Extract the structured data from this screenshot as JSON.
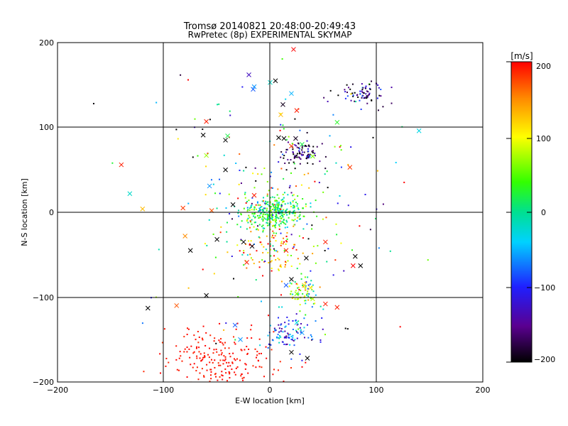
{
  "chart_data": {
    "type": "scatter",
    "title": "Tromsø 20140821 20:48:00-20:49:43",
    "subtitle": "RwPretec (8p) EXPERIMENTAL SKYMAP",
    "xlabel": "E-W location [km]",
    "ylabel": "N-S location [km]",
    "xlim": [
      -200,
      200
    ],
    "ylim": [
      -200,
      200
    ],
    "xticks": [
      "−200",
      "−100",
      "0",
      "100",
      "200"
    ],
    "yticks": [
      "−200",
      "−100",
      "0",
      "100",
      "200"
    ],
    "grid": true,
    "colorbar": {
      "label": "[m/s]",
      "range": [
        -200,
        200
      ],
      "ticks": [
        "200",
        "100",
        "0",
        "−100",
        "−200"
      ]
    },
    "clusters": [
      {
        "cx": 5,
        "cy": 0,
        "sx": 14,
        "sy": 10,
        "n": 320,
        "vmean": 20,
        "vsd": 35
      },
      {
        "cx": 0,
        "cy": -40,
        "sx": 18,
        "sy": 18,
        "n": 110,
        "vmean": 130,
        "vsd": 60
      },
      {
        "cx": -45,
        "cy": -175,
        "sx": 28,
        "sy": 20,
        "n": 230,
        "vmean": 195,
        "vsd": 6
      },
      {
        "cx": 15,
        "cy": -145,
        "sx": 13,
        "sy": 10,
        "n": 95,
        "vmean": -95,
        "vsd": 45
      },
      {
        "cx": 30,
        "cy": -95,
        "sx": 8,
        "sy": 10,
        "n": 70,
        "vmean": 60,
        "vsd": 70
      },
      {
        "cx": 30,
        "cy": 70,
        "sx": 9,
        "sy": 8,
        "n": 85,
        "vmean": -165,
        "vsd": 40
      },
      {
        "cx": 85,
        "cy": 140,
        "sx": 12,
        "sy": 8,
        "n": 75,
        "vmean": -150,
        "vsd": 60
      },
      {
        "cx": 10,
        "cy": 20,
        "sx": 40,
        "sy": 55,
        "n": 160,
        "vmean": 0,
        "vsd": 130
      },
      {
        "cx": 10,
        "cy": 0,
        "sx": 80,
        "sy": 100,
        "n": 70,
        "vmean": 0,
        "vsd": 150
      }
    ],
    "crosses": [
      {
        "x": 22,
        "y": 192,
        "v": 200
      },
      {
        "x": -20,
        "y": 162,
        "v": -130
      },
      {
        "x": -16,
        "y": 145,
        "v": -80
      },
      {
        "x": -15,
        "y": 148,
        "v": -60
      },
      {
        "x": 0,
        "y": 153,
        "v": -20
      },
      {
        "x": 5,
        "y": 155,
        "v": -200
      },
      {
        "x": 20,
        "y": 140,
        "v": -50
      },
      {
        "x": 12,
        "y": 127,
        "v": -190
      },
      {
        "x": 10,
        "y": 115,
        "v": 130
      },
      {
        "x": 25,
        "y": 120,
        "v": 190
      },
      {
        "x": -60,
        "y": 107,
        "v": 190
      },
      {
        "x": -63,
        "y": 91,
        "v": -200
      },
      {
        "x": -40,
        "y": 90,
        "v": 20
      },
      {
        "x": -42,
        "y": 85,
        "v": -200
      },
      {
        "x": 8,
        "y": 88,
        "v": -200
      },
      {
        "x": 13,
        "y": 87,
        "v": -200
      },
      {
        "x": 24,
        "y": 87,
        "v": -190
      },
      {
        "x": 20,
        "y": 78,
        "v": 180
      },
      {
        "x": 63,
        "y": 106,
        "v": 30
      },
      {
        "x": 140,
        "y": 96,
        "v": -30
      },
      {
        "x": -140,
        "y": 56,
        "v": 190
      },
      {
        "x": -42,
        "y": 50,
        "v": -200
      },
      {
        "x": -60,
        "y": 67,
        "v": 70
      },
      {
        "x": -57,
        "y": 31,
        "v": -60
      },
      {
        "x": -132,
        "y": 22,
        "v": -20
      },
      {
        "x": -120,
        "y": 4,
        "v": 130
      },
      {
        "x": -82,
        "y": 5,
        "v": 180
      },
      {
        "x": -35,
        "y": 9,
        "v": -200
      },
      {
        "x": -55,
        "y": 2,
        "v": 170
      },
      {
        "x": -15,
        "y": 20,
        "v": 190
      },
      {
        "x": 40,
        "y": 66,
        "v": 60
      },
      {
        "x": 30,
        "y": 80,
        "v": 20
      },
      {
        "x": 75,
        "y": 53,
        "v": 180
      },
      {
        "x": 78,
        "y": -63,
        "v": 200
      },
      {
        "x": 85,
        "y": -63,
        "v": -200
      },
      {
        "x": 52,
        "y": -35,
        "v": 190
      },
      {
        "x": 34,
        "y": -54,
        "v": -200
      },
      {
        "x": -80,
        "y": -28,
        "v": 150
      },
      {
        "x": -75,
        "y": -45,
        "v": -200
      },
      {
        "x": -50,
        "y": -32,
        "v": -200
      },
      {
        "x": -25,
        "y": -35,
        "v": -200
      },
      {
        "x": -22,
        "y": -59,
        "v": 190
      },
      {
        "x": -17,
        "y": -40,
        "v": -200
      },
      {
        "x": 15,
        "y": -45,
        "v": 190
      },
      {
        "x": 20,
        "y": -79,
        "v": -200
      },
      {
        "x": 15,
        "y": -86,
        "v": -80
      },
      {
        "x": 32,
        "y": -86,
        "v": 120
      },
      {
        "x": 38,
        "y": -89,
        "v": 110
      },
      {
        "x": 25,
        "y": -96,
        "v": 60
      },
      {
        "x": 40,
        "y": -102,
        "v": 80
      },
      {
        "x": 52,
        "y": -108,
        "v": 190
      },
      {
        "x": 63,
        "y": -112,
        "v": 190
      },
      {
        "x": 80,
        "y": -52,
        "v": -200
      },
      {
        "x": -60,
        "y": -98,
        "v": -200
      },
      {
        "x": -88,
        "y": -110,
        "v": 170
      },
      {
        "x": -115,
        "y": -113,
        "v": -200
      },
      {
        "x": -33,
        "y": -133,
        "v": -80
      },
      {
        "x": -28,
        "y": -150,
        "v": -60
      },
      {
        "x": 20,
        "y": -165,
        "v": -200
      },
      {
        "x": 35,
        "y": -172,
        "v": -200
      },
      {
        "x": 25,
        "y": -130,
        "v": -30
      },
      {
        "x": 30,
        "y": -142,
        "v": -60
      }
    ]
  }
}
